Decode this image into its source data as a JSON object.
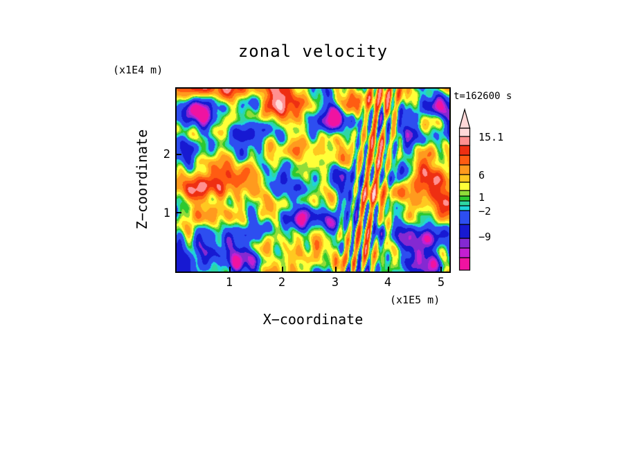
{
  "title": "zonal velocity",
  "timestamp": "t=162600 s",
  "y_unit": "(x1E4 m)",
  "x_unit": "(x1E5 m)",
  "x_label": "X−coordinate",
  "y_label": "Z−coordinate",
  "x_ticks": [
    "1",
    "2",
    "3",
    "4",
    "5"
  ],
  "y_ticks": [
    "2",
    "1"
  ],
  "colorbar": {
    "labels": [
      "15.1",
      "6",
      "1",
      "−2",
      "−9"
    ],
    "segments": [
      {
        "color": "#f013a1",
        "h": 18
      },
      {
        "color": "#c41fd2",
        "h": 14
      },
      {
        "color": "#8429d2",
        "h": 14
      },
      {
        "color": "#1719d2",
        "h": 20
      },
      {
        "color": "#2d4ef0",
        "h": 20
      },
      {
        "color": "#1fd3d9",
        "h": 7
      },
      {
        "color": "#2ed6a3",
        "h": 7
      },
      {
        "color": "#2cc930",
        "h": 7
      },
      {
        "color": "#90dc3a",
        "h": 8
      },
      {
        "color": "#ffff38",
        "h": 12
      },
      {
        "color": "#ffc820",
        "h": 11
      },
      {
        "color": "#ff9a1e",
        "h": 14
      },
      {
        "color": "#ff5c12",
        "h": 14
      },
      {
        "color": "#ee2f12",
        "h": 14
      },
      {
        "color": "#ff9090",
        "h": 13
      },
      {
        "color": "#ffd9d9",
        "h": 12
      }
    ]
  },
  "chart_data": {
    "type": "filled_contour",
    "title": "zonal velocity",
    "annotation": "t=162600 s",
    "xlabel": "X−coordinate",
    "ylabel": "Z−coordinate",
    "x_unit_scale": "(x1E5 m)",
    "y_unit_scale": "(x1E4 m)",
    "x_range": [
      0,
      5.15
    ],
    "z_range": [
      0,
      3.12
    ],
    "x_tick_values": [
      1,
      2,
      3,
      4,
      5
    ],
    "z_tick_values": [
      1,
      2
    ],
    "colorbar_label_values": [
      15.1,
      6,
      1,
      -2,
      -9
    ],
    "levels": [
      -13,
      -11,
      -9,
      -6,
      -2,
      -1,
      0,
      1,
      2,
      4,
      6,
      9,
      12,
      15.1,
      18.5
    ],
    "palette": [
      "#f013a1",
      "#c41fd2",
      "#8429d2",
      "#1719d2",
      "#2d4ef0",
      "#1fd3d9",
      "#2ed6a3",
      "#2cc930",
      "#90dc3a",
      "#ffff38",
      "#ffc820",
      "#ff9a1e",
      "#ff5c12",
      "#ee2f12",
      "#ff9090",
      "#ffd9d9"
    ],
    "field_description": "Turbulent 2D zonal-velocity section, yellow/orange dominant aloft, green/cyan low levels, navy lows, slanted wave streaks near x=3.4-4.0E5 m; recreated procedurally",
    "noise": {
      "seed": 77,
      "bias": 1.6,
      "vgrad": 3.6,
      "octaves": [
        {
          "n": 4,
          "wl": 0.85,
          "amp": 1.7
        },
        {
          "n": 6,
          "wl": 0.45,
          "amp": 1.7
        },
        {
          "n": 10,
          "wl": 0.22,
          "amp": 1.35
        },
        {
          "n": 14,
          "wl": 0.11,
          "amp": 0.7
        }
      ],
      "streaks": {
        "u0": 0.66,
        "sigma": 0.07,
        "freq": 28,
        "tilt": 0.1,
        "amp": 9
      },
      "features": [
        {
          "x": 0.08,
          "z": 0.88,
          "sx": 0.07,
          "sz": 0.1,
          "a": -13
        },
        {
          "x": 0.57,
          "z": 0.88,
          "sx": 0.05,
          "sz": 0.09,
          "a": -12
        },
        {
          "x": 0.97,
          "z": 0.9,
          "sx": 0.06,
          "sz": 0.09,
          "a": -13
        },
        {
          "x": 0.4,
          "z": 0.52,
          "sx": 0.05,
          "sz": 0.08,
          "a": -11
        },
        {
          "x": 0.47,
          "z": 0.3,
          "sx": 0.08,
          "sz": 0.1,
          "a": -6
        },
        {
          "x": 0.33,
          "z": 0.9,
          "sx": 0.05,
          "sz": 0.06,
          "a": 9
        },
        {
          "x": 0.18,
          "z": 0.58,
          "sx": 0.05,
          "sz": 0.07,
          "a": 7
        },
        {
          "x": 0.3,
          "z": 0.62,
          "sx": 0.04,
          "sz": 0.06,
          "a": 8
        },
        {
          "x": 0.84,
          "z": 0.45,
          "sx": 0.04,
          "sz": 0.07,
          "a": 8
        },
        {
          "x": 0.74,
          "z": 0.93,
          "sx": 0.04,
          "sz": 0.06,
          "a": 8
        },
        {
          "x": 0.25,
          "z": 0.05,
          "sx": 0.15,
          "sz": 0.08,
          "a": -4
        }
      ]
    }
  }
}
